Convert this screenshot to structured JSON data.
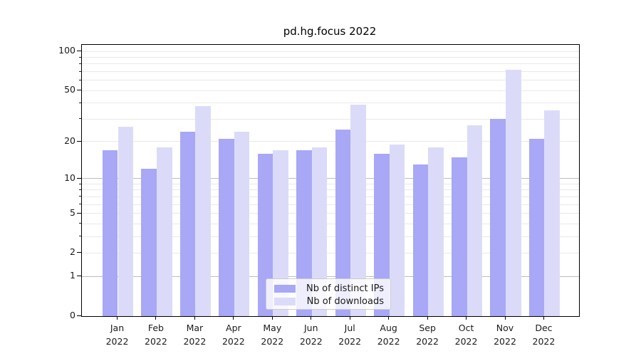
{
  "title": "pd.hg.focus 2022",
  "chart_data": {
    "type": "bar",
    "title": "pd.hg.focus 2022",
    "categories": [
      {
        "month": "Jan",
        "year": "2022"
      },
      {
        "month": "Feb",
        "year": "2022"
      },
      {
        "month": "Mar",
        "year": "2022"
      },
      {
        "month": "Apr",
        "year": "2022"
      },
      {
        "month": "May",
        "year": "2022"
      },
      {
        "month": "Jun",
        "year": "2022"
      },
      {
        "month": "Jul",
        "year": "2022"
      },
      {
        "month": "Aug",
        "year": "2022"
      },
      {
        "month": "Sep",
        "year": "2022"
      },
      {
        "month": "Oct",
        "year": "2022"
      },
      {
        "month": "Nov",
        "year": "2022"
      },
      {
        "month": "Dec",
        "year": "2022"
      }
    ],
    "series": [
      {
        "name": "Nb of distinct IPs",
        "color": "#a8a8f6",
        "values": [
          17,
          12,
          24,
          21,
          16,
          17,
          25,
          16,
          13,
          15,
          30,
          21
        ]
      },
      {
        "name": "Nb of downloads",
        "color": "#dbdbf9",
        "values": [
          26,
          18,
          38,
          24,
          17,
          18,
          39,
          19,
          18,
          27,
          72,
          35
        ]
      }
    ],
    "yscale": "log1p",
    "ylim": [
      0,
      112
    ],
    "y_ticks": [
      0,
      1,
      2,
      5,
      10,
      20,
      50,
      100
    ],
    "y_strong_gridlines": [
      1,
      10
    ],
    "y_minor_gridlines": [
      3,
      4,
      6,
      7,
      8,
      9,
      30,
      40,
      60,
      70,
      80,
      90
    ],
    "grid": true,
    "legend_position": "inside-bottom-center",
    "colors": {
      "grid_major": "#bdbdbd",
      "grid_minor": "#e9e9e9",
      "spine": "#000000",
      "text": "#1a1a1a"
    }
  }
}
